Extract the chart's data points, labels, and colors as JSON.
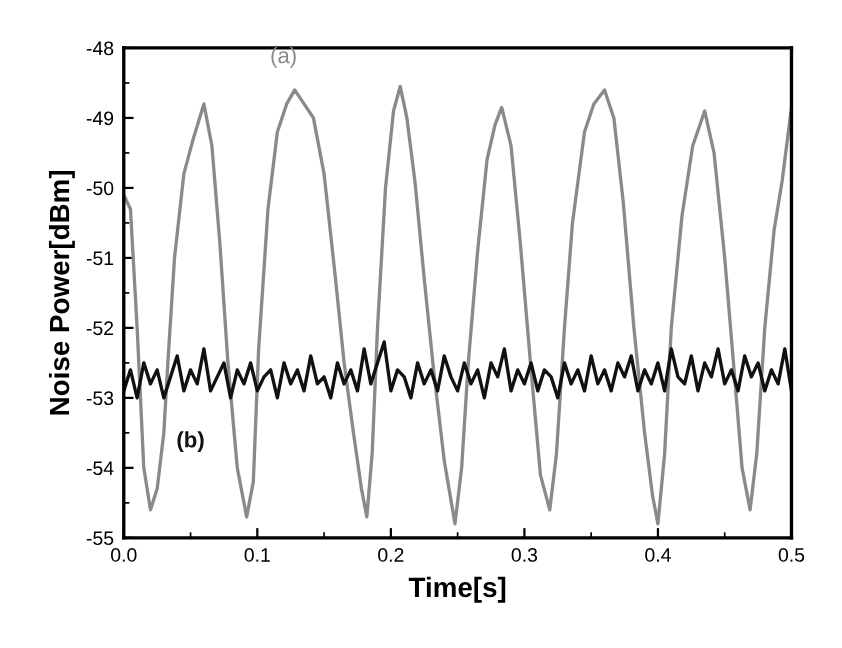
{
  "chart_data": {
    "type": "line",
    "xlabel": "Time[s]",
    "ylabel": "Noise Power[dBm]",
    "xlim": [
      0.0,
      0.5
    ],
    "xticks": [
      {
        "value": 0.0,
        "label": "0.0"
      },
      0.1,
      0.2,
      0.3,
      0.4,
      0.5
    ],
    "ylim": [
      -55,
      -48
    ],
    "yticks": [
      -55,
      -54,
      -53,
      -52,
      -51,
      -50,
      -49,
      -48
    ],
    "grid": false,
    "marker": "none",
    "line_style": "solid",
    "series": [
      {
        "name": "(a)",
        "color": "#8a8a8a",
        "x": [
          0,
          0.005,
          0.01,
          0.015,
          0.02,
          0.025,
          0.03,
          0.033,
          0.038,
          0.045,
          0.052,
          0.06,
          0.066,
          0.072,
          0.078,
          0.085,
          0.092,
          0.097,
          0.101,
          0.108,
          0.115,
          0.122,
          0.128,
          0.135,
          0.142,
          0.15,
          0.158,
          0.165,
          0.172,
          0.178,
          0.182,
          0.186,
          0.19,
          0.196,
          0.202,
          0.207,
          0.212,
          0.218,
          0.225,
          0.232,
          0.24,
          0.248,
          0.253,
          0.258,
          0.265,
          0.272,
          0.278,
          0.283,
          0.29,
          0.297,
          0.305,
          0.312,
          0.319,
          0.324,
          0.33,
          0.336,
          0.345,
          0.352,
          0.36,
          0.367,
          0.374,
          0.382,
          0.39,
          0.396,
          0.4,
          0.405,
          0.41,
          0.418,
          0.426,
          0.435,
          0.442,
          0.45,
          0.457,
          0.463,
          0.469,
          0.474,
          0.48,
          0.487,
          0.493,
          0.5
        ],
        "values": [
          -50.1,
          -50.3,
          -52.0,
          -54.0,
          -54.6,
          -54.3,
          -53.5,
          -52.5,
          -51.0,
          -49.8,
          -49.3,
          -48.8,
          -49.4,
          -50.8,
          -52.5,
          -54.0,
          -54.7,
          -54.2,
          -52.3,
          -50.3,
          -49.2,
          -48.8,
          -48.6,
          -48.8,
          -49.0,
          -49.8,
          -51.2,
          -52.5,
          -53.5,
          -54.3,
          -54.7,
          -53.8,
          -52.0,
          -50.0,
          -48.9,
          -48.55,
          -49.0,
          -49.9,
          -51.3,
          -52.6,
          -53.9,
          -54.8,
          -54.0,
          -52.5,
          -50.9,
          -49.6,
          -49.1,
          -48.85,
          -49.4,
          -50.8,
          -52.6,
          -54.1,
          -54.6,
          -53.8,
          -52.0,
          -50.5,
          -49.2,
          -48.8,
          -48.6,
          -49.0,
          -50.2,
          -52.0,
          -53.5,
          -54.4,
          -54.8,
          -53.8,
          -52.0,
          -50.4,
          -49.4,
          -48.9,
          -49.5,
          -51.0,
          -52.6,
          -54.0,
          -54.6,
          -53.8,
          -52.0,
          -50.6,
          -49.9,
          -48.85
        ]
      },
      {
        "name": "(b)",
        "color": "#111111",
        "x": [
          0,
          0.005,
          0.01,
          0.015,
          0.02,
          0.025,
          0.03,
          0.035,
          0.04,
          0.045,
          0.05,
          0.055,
          0.06,
          0.065,
          0.07,
          0.075,
          0.08,
          0.085,
          0.09,
          0.095,
          0.1,
          0.105,
          0.11,
          0.115,
          0.12,
          0.125,
          0.13,
          0.135,
          0.14,
          0.145,
          0.15,
          0.155,
          0.16,
          0.165,
          0.17,
          0.175,
          0.18,
          0.185,
          0.19,
          0.195,
          0.2,
          0.205,
          0.21,
          0.215,
          0.22,
          0.225,
          0.23,
          0.235,
          0.24,
          0.245,
          0.25,
          0.255,
          0.26,
          0.265,
          0.27,
          0.275,
          0.28,
          0.285,
          0.29,
          0.295,
          0.3,
          0.305,
          0.31,
          0.315,
          0.32,
          0.325,
          0.33,
          0.335,
          0.34,
          0.345,
          0.35,
          0.355,
          0.36,
          0.365,
          0.37,
          0.375,
          0.38,
          0.385,
          0.39,
          0.395,
          0.4,
          0.405,
          0.41,
          0.415,
          0.42,
          0.425,
          0.43,
          0.435,
          0.44,
          0.445,
          0.45,
          0.455,
          0.46,
          0.465,
          0.47,
          0.475,
          0.48,
          0.485,
          0.49,
          0.495,
          0.5
        ],
        "values": [
          -52.9,
          -52.6,
          -53.0,
          -52.5,
          -52.8,
          -52.6,
          -53.0,
          -52.7,
          -52.4,
          -52.9,
          -52.6,
          -52.8,
          -52.3,
          -52.9,
          -52.7,
          -52.5,
          -53.0,
          -52.6,
          -52.8,
          -52.5,
          -52.9,
          -52.7,
          -52.6,
          -53.0,
          -52.5,
          -52.8,
          -52.6,
          -52.9,
          -52.4,
          -52.8,
          -52.7,
          -53.0,
          -52.5,
          -52.8,
          -52.6,
          -52.9,
          -52.3,
          -52.8,
          -52.5,
          -52.2,
          -52.9,
          -52.6,
          -52.7,
          -53.0,
          -52.5,
          -52.8,
          -52.6,
          -52.9,
          -52.4,
          -52.7,
          -52.9,
          -52.5,
          -52.8,
          -52.6,
          -53.0,
          -52.5,
          -52.7,
          -52.3,
          -52.9,
          -52.6,
          -52.8,
          -52.5,
          -52.9,
          -52.6,
          -52.7,
          -53.0,
          -52.5,
          -52.8,
          -52.6,
          -52.9,
          -52.4,
          -52.8,
          -52.6,
          -52.9,
          -52.5,
          -52.7,
          -52.4,
          -52.9,
          -52.6,
          -52.8,
          -52.5,
          -52.9,
          -52.3,
          -52.7,
          -52.8,
          -52.4,
          -52.9,
          -52.5,
          -52.7,
          -52.3,
          -52.8,
          -52.6,
          -52.9,
          -52.4,
          -52.7,
          -52.5,
          -52.9,
          -52.6,
          -52.8,
          -52.3,
          -52.9
        ]
      }
    ]
  }
}
